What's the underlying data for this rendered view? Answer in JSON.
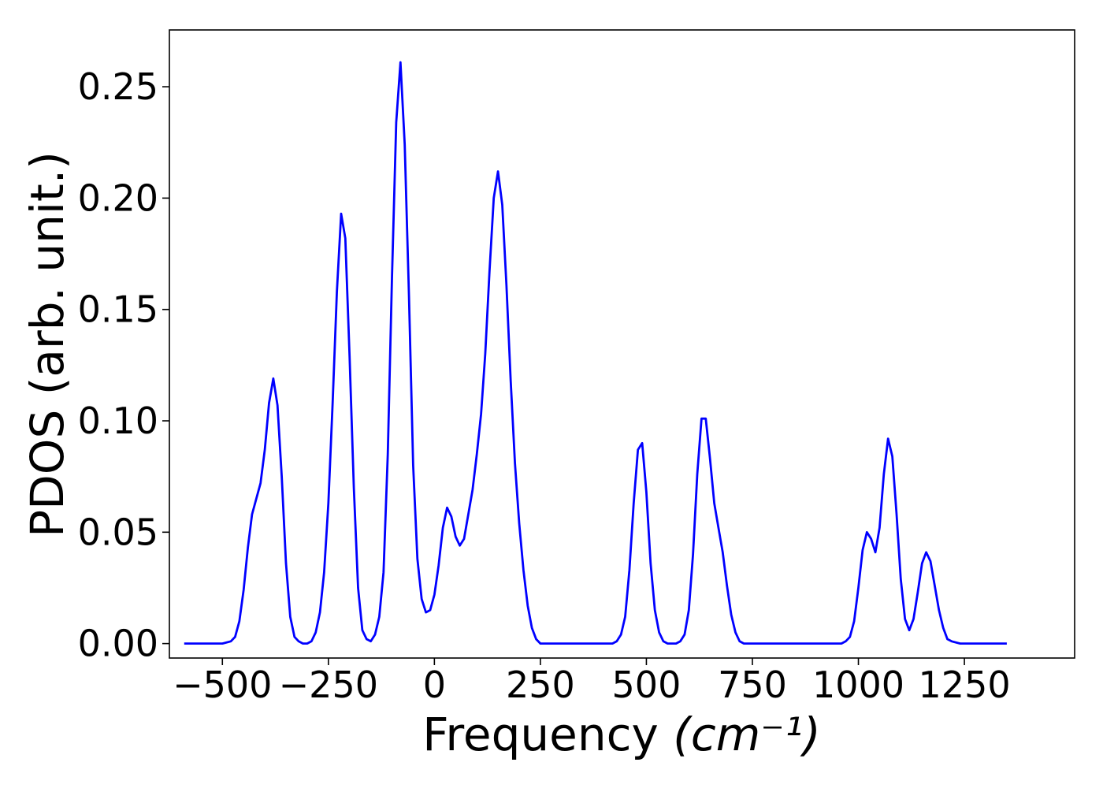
{
  "chart_data": {
    "type": "line",
    "xlabel": "Frequency",
    "xlabel_unit": "(cm⁻¹)",
    "ylabel": "PDOS (arb. unit.)",
    "xlim": [
      -625,
      1510
    ],
    "ylim": [
      -0.0065,
      0.2755
    ],
    "grid": false,
    "xticks": [
      -500,
      -250,
      0,
      250,
      500,
      750,
      1000,
      1250
    ],
    "xtick_labels": [
      "−500",
      "−250",
      "0",
      "250",
      "500",
      "750",
      "1000",
      "1250"
    ],
    "yticks": [
      0.0,
      0.05,
      0.1,
      0.15,
      0.2,
      0.25
    ],
    "ytick_labels": [
      "0.00",
      "0.05",
      "0.10",
      "0.15",
      "0.20",
      "0.25"
    ],
    "series": [
      {
        "color": "#0000ff",
        "x": [
          -590,
          -500,
          -480,
          -470,
          -460,
          -450,
          -440,
          -430,
          -420,
          -410,
          -400,
          -390,
          -380,
          -370,
          -360,
          -350,
          -340,
          -330,
          -320,
          -310,
          -300,
          -290,
          -280,
          -270,
          -260,
          -250,
          -240,
          -230,
          -220,
          -210,
          -200,
          -190,
          -180,
          -170,
          -160,
          -150,
          -140,
          -130,
          -120,
          -110,
          -100,
          -90,
          -80,
          -70,
          -60,
          -50,
          -40,
          -30,
          -20,
          -10,
          0,
          10,
          20,
          30,
          40,
          50,
          60,
          70,
          80,
          90,
          100,
          110,
          120,
          130,
          140,
          150,
          160,
          170,
          180,
          190,
          200,
          210,
          220,
          230,
          240,
          250,
          260,
          270,
          290,
          410,
          420,
          430,
          440,
          450,
          460,
          470,
          480,
          490,
          500,
          510,
          520,
          530,
          540,
          550,
          560,
          570,
          580,
          590,
          600,
          610,
          620,
          630,
          640,
          650,
          660,
          670,
          680,
          690,
          700,
          710,
          720,
          730,
          960,
          970,
          980,
          990,
          1000,
          1010,
          1020,
          1030,
          1040,
          1050,
          1060,
          1070,
          1080,
          1090,
          1100,
          1110,
          1120,
          1130,
          1140,
          1150,
          1160,
          1170,
          1180,
          1190,
          1200,
          1210,
          1220,
          1240,
          1350
        ],
        "y": [
          0.0,
          0.0,
          0.001,
          0.003,
          0.01,
          0.024,
          0.043,
          0.058,
          0.065,
          0.072,
          0.087,
          0.108,
          0.119,
          0.107,
          0.075,
          0.036,
          0.012,
          0.003,
          0.001,
          0.0,
          0.0,
          0.001,
          0.005,
          0.014,
          0.032,
          0.063,
          0.108,
          0.158,
          0.193,
          0.182,
          0.129,
          0.07,
          0.025,
          0.006,
          0.002,
          0.001,
          0.004,
          0.012,
          0.032,
          0.085,
          0.164,
          0.234,
          0.261,
          0.224,
          0.156,
          0.08,
          0.038,
          0.02,
          0.014,
          0.015,
          0.022,
          0.035,
          0.052,
          0.061,
          0.057,
          0.048,
          0.044,
          0.047,
          0.058,
          0.069,
          0.085,
          0.103,
          0.13,
          0.167,
          0.2,
          0.212,
          0.197,
          0.161,
          0.118,
          0.081,
          0.054,
          0.033,
          0.017,
          0.007,
          0.002,
          0.0,
          0.0,
          0.0,
          0.0,
          0.0,
          0.0,
          0.001,
          0.004,
          0.012,
          0.033,
          0.063,
          0.087,
          0.09,
          0.068,
          0.036,
          0.015,
          0.005,
          0.001,
          0.0,
          0.0,
          0.0,
          0.001,
          0.004,
          0.015,
          0.04,
          0.076,
          0.101,
          0.101,
          0.083,
          0.063,
          0.052,
          0.041,
          0.026,
          0.013,
          0.005,
          0.001,
          0.0,
          0.0,
          0.001,
          0.003,
          0.01,
          0.025,
          0.042,
          0.05,
          0.047,
          0.041,
          0.052,
          0.076,
          0.092,
          0.084,
          0.058,
          0.029,
          0.011,
          0.006,
          0.011,
          0.023,
          0.036,
          0.041,
          0.037,
          0.026,
          0.015,
          0.007,
          0.002,
          0.001,
          0.0,
          0.0
        ]
      }
    ]
  }
}
